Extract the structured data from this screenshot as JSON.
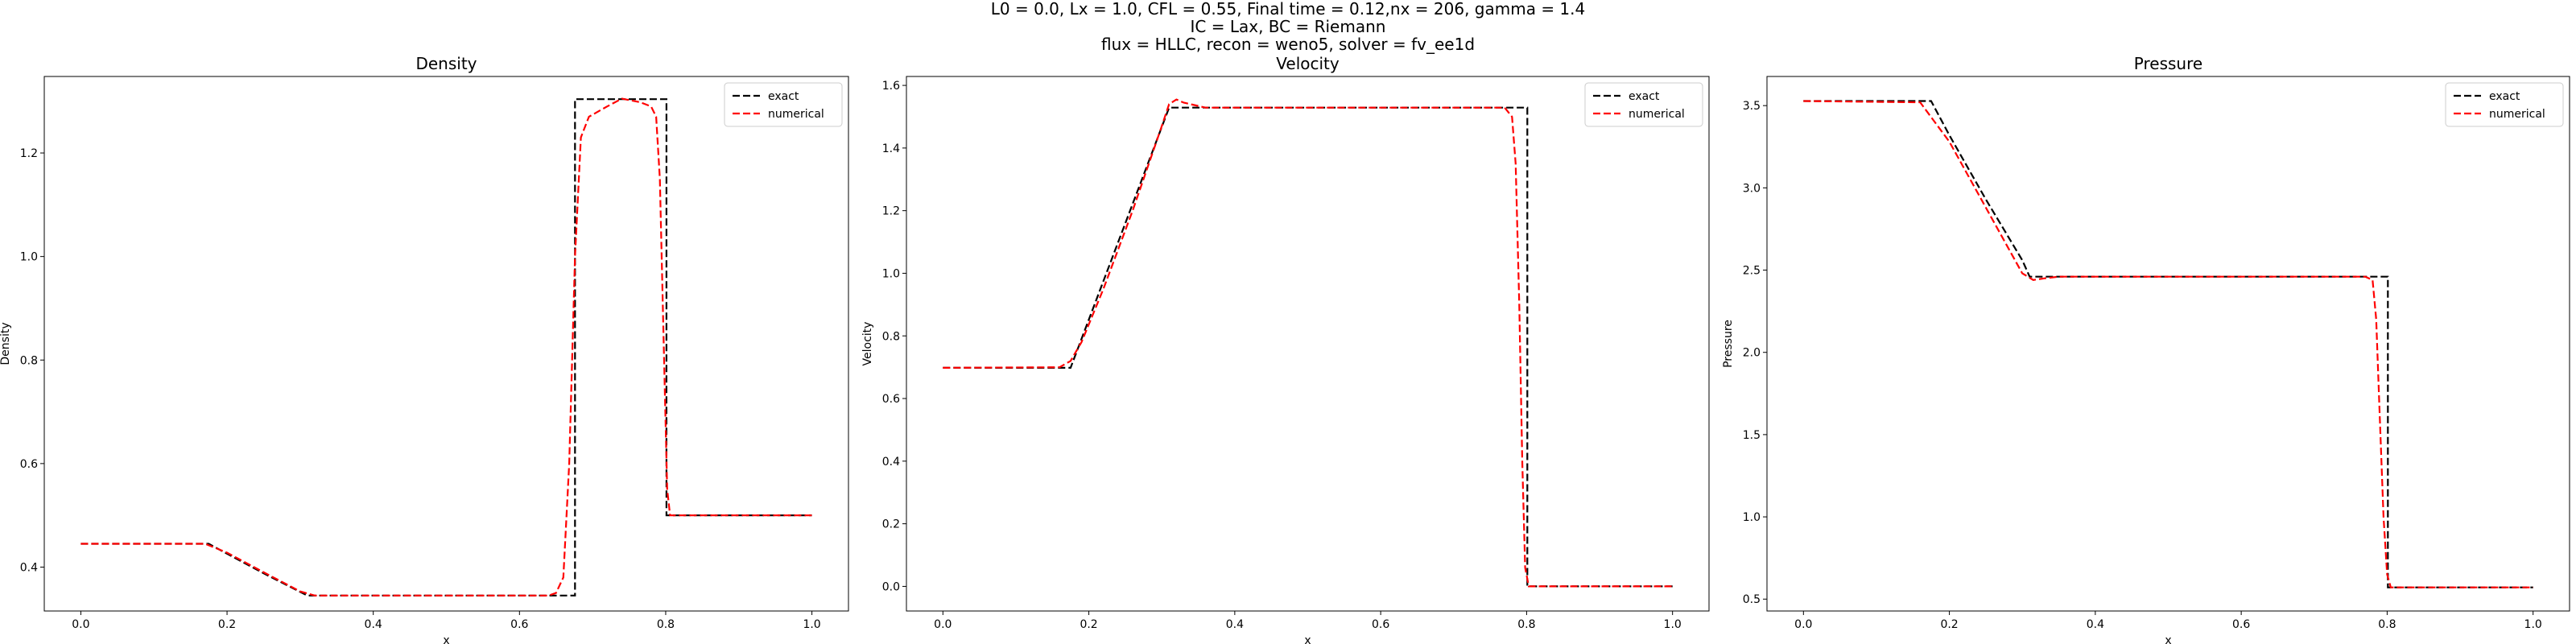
{
  "figure": {
    "suptitle_lines": [
      "L0 = 0.0, Lx = 1.0, CFL = 0.55, Final time = 0.12,nx = 206, gamma = 1.4",
      "IC = Lax, BC = Riemann",
      "flux = HLLC, recon = weno5, solver = fv_ee1d"
    ]
  },
  "chart_data": [
    {
      "type": "line",
      "title": "Density",
      "xlabel": "x",
      "ylabel": "Density",
      "xlim": [
        -0.05,
        1.05
      ],
      "ylim": [
        0.3152,
        1.3478
      ],
      "xticks": [
        0.0,
        0.2,
        0.4,
        0.6,
        0.8,
        1.0
      ],
      "xtick_labels": [
        "0.0",
        "0.2",
        "0.4",
        "0.6",
        "0.8",
        "1.0"
      ],
      "yticks": [
        0.4,
        0.6,
        0.8,
        1.0,
        1.2
      ],
      "ytick_labels": [
        "0.4",
        "0.6",
        "0.8",
        "1.0",
        "1.2"
      ],
      "legend_position": "top-right",
      "series": [
        {
          "name": "exact",
          "color": "#000000",
          "x": [
            0.0,
            0.175,
            0.2,
            0.25,
            0.3,
            0.31,
            0.676,
            0.676,
            0.801,
            0.801,
            1.0
          ],
          "y": [
            0.445,
            0.445,
            0.426,
            0.388,
            0.352,
            0.345,
            0.345,
            1.304,
            1.304,
            0.5,
            0.5
          ]
        },
        {
          "name": "numerical",
          "color": "#ff0000",
          "x": [
            0.0,
            0.17,
            0.2,
            0.25,
            0.3,
            0.32,
            0.64,
            0.65,
            0.66,
            0.668,
            0.676,
            0.684,
            0.695,
            0.72,
            0.74,
            0.765,
            0.78,
            0.787,
            0.792,
            0.797,
            0.802,
            0.806,
            1.0
          ],
          "y": [
            0.445,
            0.445,
            0.428,
            0.39,
            0.353,
            0.345,
            0.345,
            0.35,
            0.38,
            0.6,
            1.0,
            1.23,
            1.27,
            1.29,
            1.305,
            1.298,
            1.29,
            1.27,
            1.15,
            0.85,
            0.55,
            0.5,
            0.5
          ]
        }
      ]
    },
    {
      "type": "line",
      "title": "Velocity",
      "xlabel": "x",
      "ylabel": "Velocity",
      "xlim": [
        -0.05,
        1.05
      ],
      "ylim": [
        -0.0786,
        1.6285
      ],
      "xticks": [
        0.0,
        0.2,
        0.4,
        0.6,
        0.8,
        1.0
      ],
      "xtick_labels": [
        "0.0",
        "0.2",
        "0.4",
        "0.6",
        "0.8",
        "1.0"
      ],
      "yticks": [
        0.0,
        0.2,
        0.4,
        0.6,
        0.8,
        1.0,
        1.2,
        1.4,
        1.6
      ],
      "ytick_labels": [
        "0.0",
        "0.2",
        "0.4",
        "0.6",
        "0.8",
        "1.0",
        "1.2",
        "1.4",
        "1.6"
      ],
      "legend_position": "top-right",
      "series": [
        {
          "name": "exact",
          "color": "#000000",
          "x": [
            0.0,
            0.175,
            0.31,
            0.801,
            0.801,
            1.0
          ],
          "y": [
            0.698,
            0.698,
            1.529,
            1.529,
            0.0,
            0.0
          ]
        },
        {
          "name": "numerical",
          "color": "#ff0000",
          "x": [
            0.0,
            0.16,
            0.175,
            0.19,
            0.22,
            0.26,
            0.3,
            0.31,
            0.32,
            0.33,
            0.36,
            0.77,
            0.78,
            0.785,
            0.79,
            0.794,
            0.798,
            0.803,
            1.0
          ],
          "y": [
            0.698,
            0.7,
            0.72,
            0.78,
            0.95,
            1.2,
            1.47,
            1.54,
            1.555,
            1.545,
            1.529,
            1.529,
            1.5,
            1.35,
            0.9,
            0.4,
            0.06,
            0.0,
            0.0
          ]
        }
      ]
    },
    {
      "type": "line",
      "title": "Pressure",
      "xlabel": "x",
      "ylabel": "Pressure",
      "xlim": [
        -0.05,
        1.05
      ],
      "ylim": [
        0.4278,
        3.6771
      ],
      "xticks": [
        0.0,
        0.2,
        0.4,
        0.6,
        0.8,
        1.0
      ],
      "xtick_labels": [
        "0.0",
        "0.2",
        "0.4",
        "0.6",
        "0.8",
        "1.0"
      ],
      "yticks": [
        0.5,
        1.0,
        1.5,
        2.0,
        2.5,
        3.0,
        3.5
      ],
      "ytick_labels": [
        "0.5",
        "1.0",
        "1.5",
        "2.0",
        "2.5",
        "3.0",
        "3.5"
      ],
      "legend_position": "top-right",
      "series": [
        {
          "name": "exact",
          "color": "#000000",
          "x": [
            0.0,
            0.175,
            0.2,
            0.25,
            0.3,
            0.31,
            0.801,
            0.801,
            1.0
          ],
          "y": [
            3.528,
            3.528,
            3.32,
            2.93,
            2.56,
            2.46,
            2.46,
            0.571,
            0.571
          ]
        },
        {
          "name": "numerical",
          "color": "#ff0000",
          "x": [
            0.0,
            0.16,
            0.2,
            0.25,
            0.3,
            0.315,
            0.33,
            0.35,
            0.77,
            0.78,
            0.785,
            0.79,
            0.795,
            0.8,
            0.805,
            1.0
          ],
          "y": [
            3.528,
            3.52,
            3.28,
            2.88,
            2.48,
            2.44,
            2.45,
            2.46,
            2.46,
            2.44,
            2.2,
            1.6,
            1.0,
            0.65,
            0.571,
            0.571
          ]
        }
      ]
    }
  ]
}
